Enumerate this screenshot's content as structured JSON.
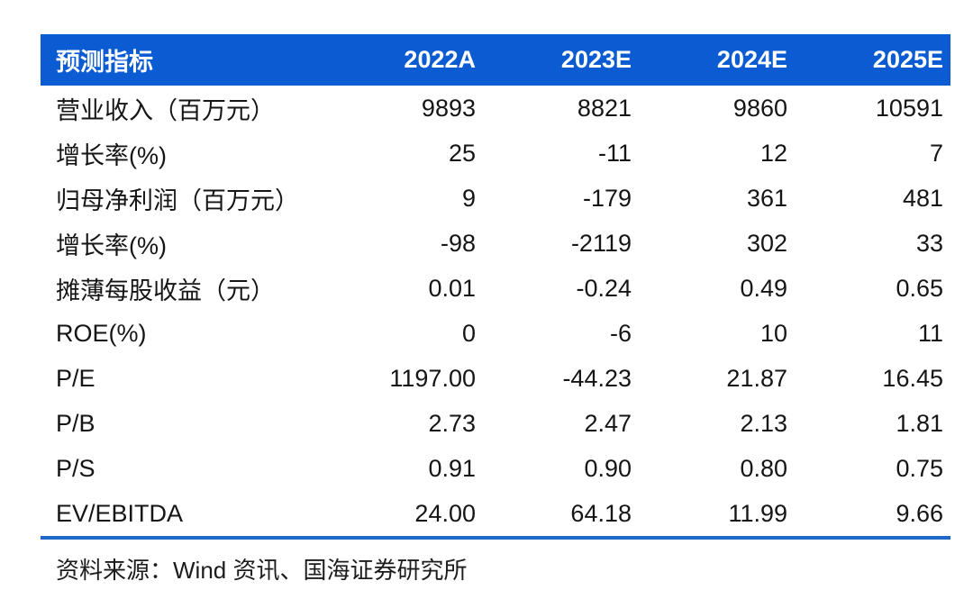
{
  "chart_data": {
    "type": "table",
    "title": "预测指标",
    "columns": [
      "预测指标",
      "2022A",
      "2023E",
      "2024E",
      "2025E"
    ],
    "rows": [
      {
        "label": "营业收入（百万元）",
        "values": [
          "9893",
          "8821",
          "9860",
          "10591"
        ]
      },
      {
        "label": "增长率(%)",
        "values": [
          "25",
          "-11",
          "12",
          "7"
        ]
      },
      {
        "label": "归母净利润（百万元）",
        "values": [
          "9",
          "-179",
          "361",
          "481"
        ]
      },
      {
        "label": "增长率(%)",
        "values": [
          "-98",
          "-2119",
          "302",
          "33"
        ]
      },
      {
        "label": "摊薄每股收益（元）",
        "values": [
          "0.01",
          "-0.24",
          "0.49",
          "0.65"
        ]
      },
      {
        "label": "ROE(%)",
        "values": [
          "0",
          "-6",
          "10",
          "11"
        ]
      },
      {
        "label": "P/E",
        "values": [
          "1197.00",
          "-44.23",
          "21.87",
          "16.45"
        ]
      },
      {
        "label": "P/B",
        "values": [
          "2.73",
          "2.47",
          "2.13",
          "1.81"
        ]
      },
      {
        "label": "P/S",
        "values": [
          "0.91",
          "0.90",
          "0.80",
          "0.75"
        ]
      },
      {
        "label": "EV/EBITDA",
        "values": [
          "24.00",
          "64.18",
          "11.99",
          "9.66"
        ]
      }
    ],
    "layout": {
      "header_position": "top",
      "value_alignment": "right",
      "gridlines": false,
      "bottom_rule": true
    }
  },
  "footer": {
    "source_text": "资料来源：Wind 资讯、国海证券研究所"
  },
  "colors": {
    "header_bg": "#0b5bd3",
    "header_text": "#ffffff",
    "body_text": "#151515",
    "bottom_rule": "#1f67cb",
    "page_bg": "#ffffff"
  }
}
